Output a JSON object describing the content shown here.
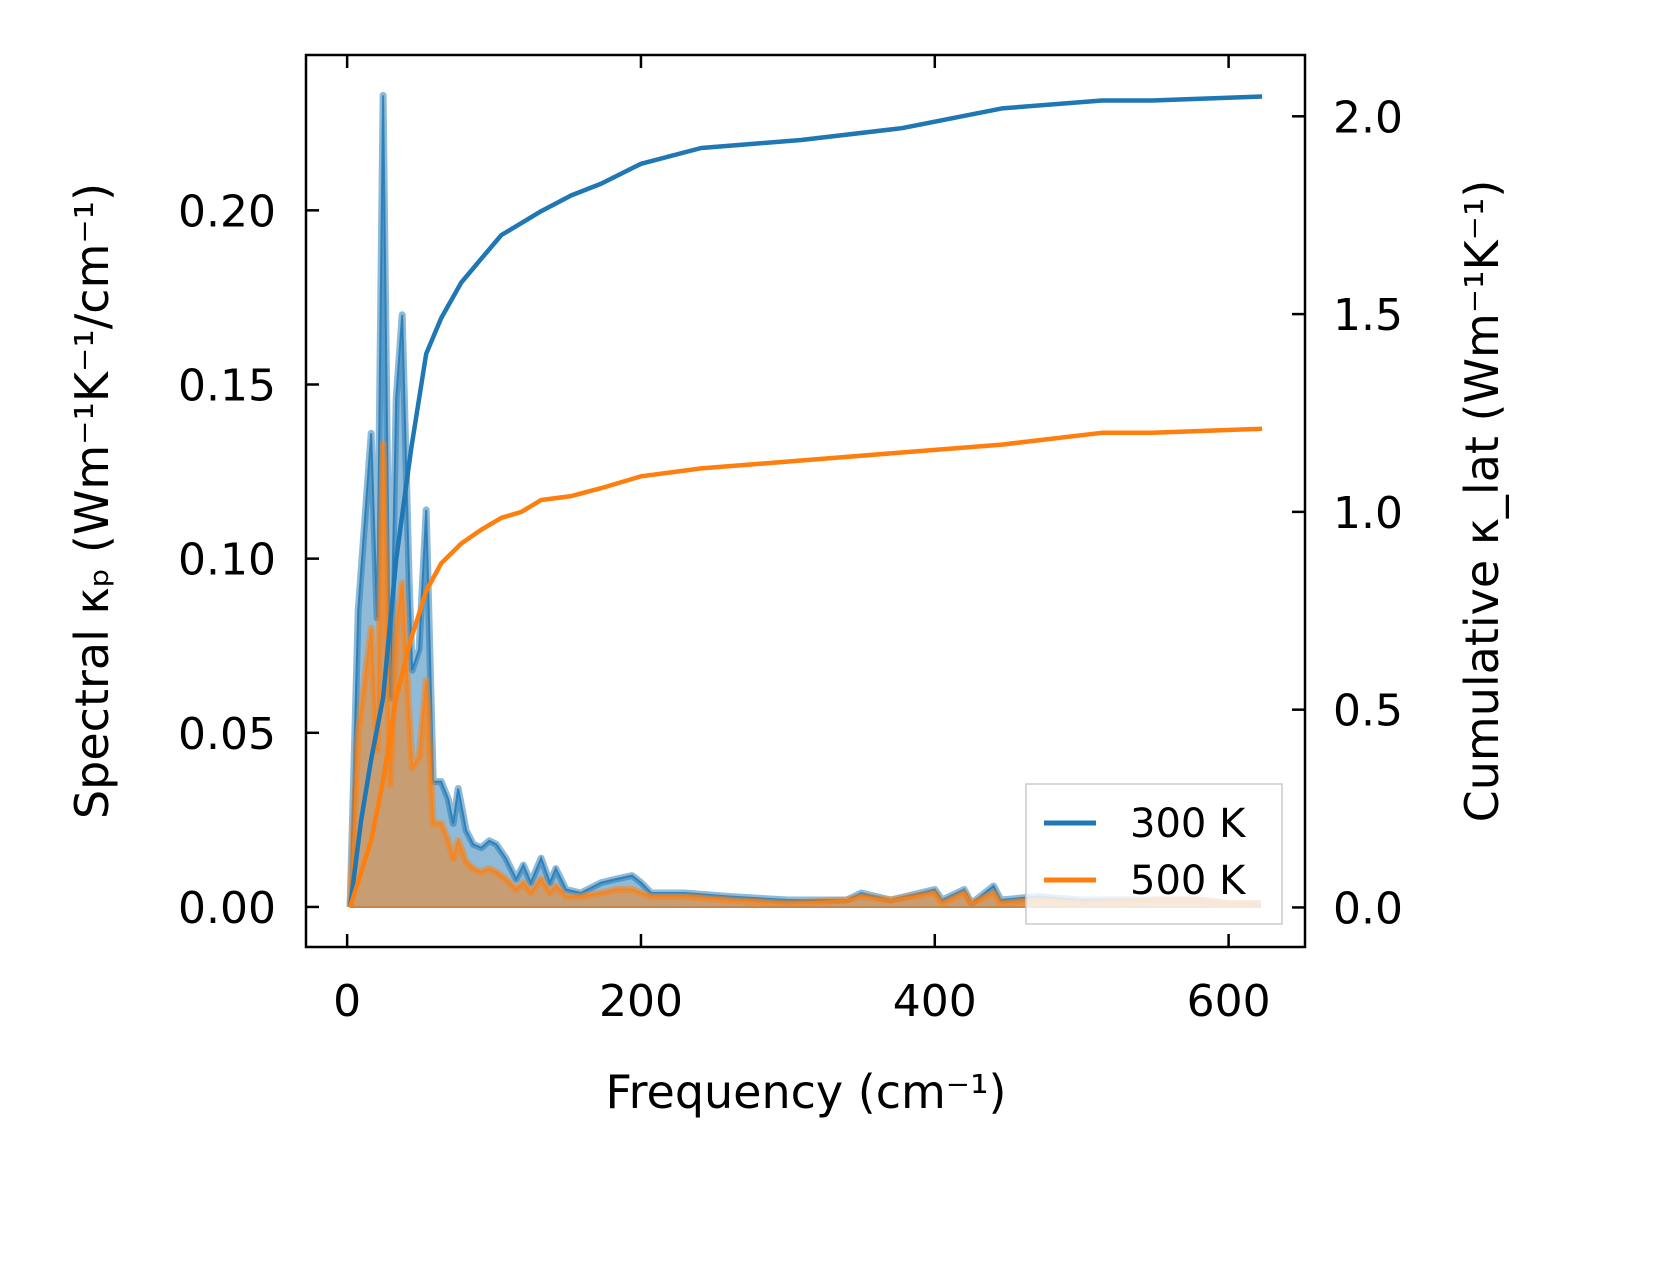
{
  "chart_data": {
    "type": "area",
    "xlabel": "Frequency (cm⁻¹)",
    "ylabel_left": "Spectral κₚ (Wm⁻¹K⁻¹/cm⁻¹)",
    "ylabel_right": "Cumulative κ_lat (Wm⁻¹K⁻¹)",
    "xlim": [
      -28,
      652
    ],
    "ylim_left": [
      -0.0115,
      0.2446
    ],
    "ylim_right": [
      -0.1,
      2.155
    ],
    "xticks": [
      "0",
      "200",
      "400",
      "600"
    ],
    "xtick_values": [
      0,
      200,
      400,
      600
    ],
    "yticks_left": [
      "0.00",
      "0.05",
      "0.10",
      "0.15",
      "0.20"
    ],
    "ytick_left_values": [
      0,
      0.05,
      0.1,
      0.15,
      0.2
    ],
    "yticks_right": [
      "0.0",
      "0.5",
      "1.0",
      "1.5",
      "2.0"
    ],
    "ytick_right_values": [
      0,
      0.5,
      1.0,
      1.5,
      2.0
    ],
    "grid": false,
    "legend_position": "lower-right",
    "colors": {
      "300 K": "#1f77b4",
      "500 K": "#ff7f0e"
    },
    "spectral_x": [
      2,
      7.5,
      16.4,
      20.4,
      24.5,
      29.3,
      33.4,
      37.5,
      42.2,
      44.3,
      49,
      53.8,
      58.6,
      64,
      68.8,
      72.2,
      75.6,
      81,
      85.9,
      91.3,
      96.8,
      101.5,
      108,
      115,
      120,
      125,
      132,
      138,
      142,
      149,
      159,
      173,
      183,
      194,
      200,
      207,
      230,
      260,
      300,
      340,
      350,
      370,
      400,
      405,
      420,
      425,
      440,
      445,
      470,
      500,
      550,
      580,
      600,
      622
    ],
    "series": [
      {
        "name": "300 K",
        "spectral": [
          0,
          0.085,
          0.136,
          0.083,
          0.233,
          0.06,
          0.146,
          0.17,
          0.094,
          0.068,
          0.074,
          0.114,
          0.036,
          0.036,
          0.031,
          0.024,
          0.034,
          0.022,
          0.018,
          0.017,
          0.019,
          0.018,
          0.014,
          0.008,
          0.012,
          0.007,
          0.014,
          0.007,
          0.011,
          0.005,
          0.004,
          0.007,
          0.008,
          0.009,
          0.007,
          0.004,
          0.004,
          0.003,
          0.002,
          0.002,
          0.004,
          0.002,
          0.005,
          0.002,
          0.005,
          0.001,
          0.006,
          0.002,
          0.003,
          0.002,
          0.002,
          0.002,
          0.001,
          0.001
        ],
        "cumulative_x": [
          2,
          9.5,
          16.4,
          24.5,
          33.4,
          43.6,
          53.8,
          64,
          77.7,
          91.3,
          105,
          118.6,
          132,
          152.6,
          173,
          200,
          241,
          275,
          309,
          377.5,
          445.7,
          513.8,
          548,
          622.8
        ],
        "cumulative": [
          0,
          0.22,
          0.375,
          0.53,
          0.88,
          1.16,
          1.4,
          1.49,
          1.58,
          1.64,
          1.7,
          1.73,
          1.76,
          1.8,
          1.83,
          1.88,
          1.92,
          1.93,
          1.94,
          1.97,
          2.02,
          2.04,
          2.04,
          2.05
        ]
      },
      {
        "name": "500 K",
        "spectral": [
          0,
          0.05,
          0.08,
          0.045,
          0.133,
          0.035,
          0.08,
          0.093,
          0.055,
          0.04,
          0.043,
          0.065,
          0.024,
          0.024,
          0.019,
          0.014,
          0.019,
          0.013,
          0.011,
          0.01,
          0.011,
          0.01,
          0.008,
          0.005,
          0.007,
          0.004,
          0.008,
          0.004,
          0.006,
          0.003,
          0.003,
          0.004,
          0.005,
          0.005,
          0.004,
          0.003,
          0.003,
          0.002,
          0.001,
          0.002,
          0.003,
          0.002,
          0.004,
          0.001,
          0.004,
          0.001,
          0.004,
          0.001,
          0.002,
          0.001,
          0.002,
          0.002,
          0.001,
          0.001
        ],
        "cumulative_x": [
          2,
          16.4,
          24.5,
          33.4,
          43.6,
          53.8,
          64,
          77.7,
          91.3,
          105,
          118.6,
          132,
          152.6,
          173,
          200,
          241,
          309,
          377.5,
          445.7,
          513.8,
          548,
          622.8
        ],
        "cumulative": [
          0,
          0.17,
          0.32,
          0.53,
          0.68,
          0.8,
          0.87,
          0.92,
          0.955,
          0.985,
          1.0,
          1.03,
          1.04,
          1.06,
          1.09,
          1.11,
          1.13,
          1.15,
          1.17,
          1.2,
          1.2,
          1.21
        ]
      }
    ]
  }
}
